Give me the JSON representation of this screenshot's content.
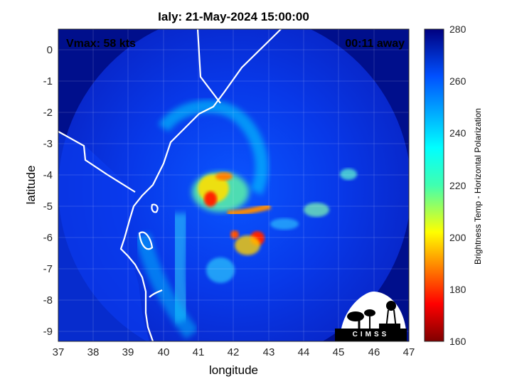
{
  "title": "Ialy: 21-May-2024 15:00:00",
  "vmax_text": "Vmax: 58 kts",
  "time_away": "00:11 away",
  "xlabel": "longitude",
  "ylabel": "latitude",
  "colorbar_label": "Brightness Temp - Horizontal Polarization",
  "logo_text": "CIMSS",
  "colors": {
    "background": "#000f8c",
    "land_line": "#ffffff"
  },
  "chart_data": {
    "type": "heatmap",
    "title": "Ialy: 21-May-2024 15:00:00",
    "xlabel": "longitude",
    "ylabel": "latitude",
    "xlim": [
      37,
      47
    ],
    "ylim": [
      -9.3,
      0.7
    ],
    "xticks": [
      37,
      38,
      39,
      40,
      41,
      42,
      43,
      44,
      45,
      46,
      47
    ],
    "yticks": [
      0,
      -1,
      -2,
      -3,
      -4,
      -5,
      -6,
      -7,
      -8,
      -9
    ],
    "grid": true,
    "colorbar": {
      "label": "Brightness Temp - Horizontal Polarization",
      "range": [
        160,
        280
      ],
      "ticks": [
        160,
        180,
        200,
        220,
        240,
        260,
        280
      ],
      "colormap": "jet"
    },
    "swath_center": [
      42.0,
      -4.3
    ],
    "swath_radius_deg": 5.0,
    "storm_center": [
      41.9,
      -4.6
    ]
  }
}
